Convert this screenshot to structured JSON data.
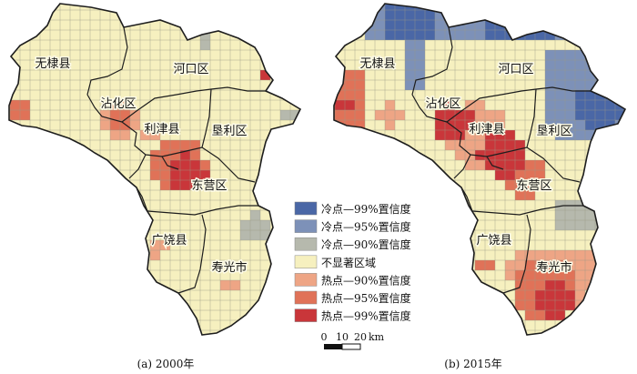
{
  "colors": {
    "background": "#ffffff",
    "map_fill": "#f6f0bf",
    "grid_line": "#9b9b86",
    "boundary": "#1d1d1d",
    "cold_99": "#4a67a6",
    "cold_95": "#7d91b8",
    "cold_90": "#b6b9ad",
    "not_significant": "#f6f0bf",
    "hot_90": "#eea585",
    "hot_95": "#e07258",
    "hot_99": "#c9363a"
  },
  "panels": [
    {
      "id": "2000",
      "caption": "(a) 2000年",
      "regions": [
        "无棣县",
        "沾化区",
        "河口区",
        "利津县",
        "垦利区",
        "东营区",
        "广饶县",
        "寿光市"
      ]
    },
    {
      "id": "2015",
      "caption": "(b) 2015年",
      "regions": [
        "无棣县",
        "沾化区",
        "河口区",
        "利津县",
        "垦利区",
        "东营区",
        "广饶县",
        "寿光市"
      ]
    }
  ],
  "legend": {
    "items": [
      {
        "label": "冷点—99%置信度",
        "class": "cold_99"
      },
      {
        "label": "冷点—95%置信度",
        "class": "cold_95"
      },
      {
        "label": "冷点—90%置信度",
        "class": "cold_90"
      },
      {
        "label": "不显著区域",
        "class": "not_significant"
      },
      {
        "label": "热点—90%置信度",
        "class": "hot_90"
      },
      {
        "label": "热点—95%置信度",
        "class": "hot_95"
      },
      {
        "label": "热点—99%置信度",
        "class": "hot_99"
      }
    ]
  },
  "scale_bar": {
    "ticks": [
      "0",
      "10",
      "20"
    ],
    "unit": "km"
  }
}
